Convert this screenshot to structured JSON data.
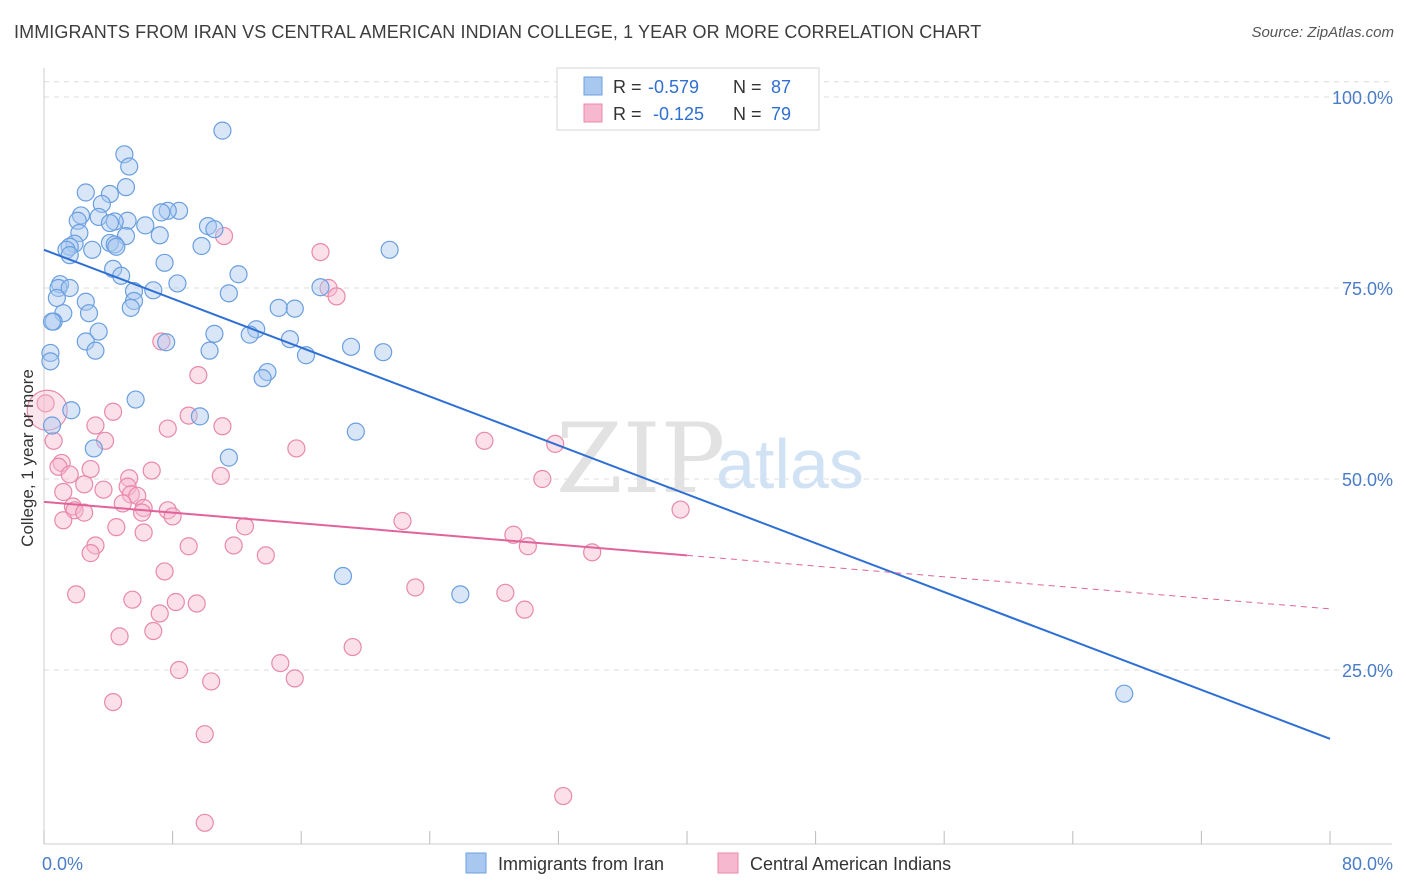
{
  "title": "IMMIGRANTS FROM IRAN VS CENTRAL AMERICAN INDIAN COLLEGE, 1 YEAR OR MORE CORRELATION CHART",
  "source": "Source: ZipAtlas.com",
  "watermark": {
    "part1": "ZIP",
    "part2": "atlas"
  },
  "colors": {
    "blue": "#2e6fd3",
    "blue_fill": "#a9c8f0",
    "pink": "#e0649a",
    "pink_fill": "#f6b8cf",
    "axis_label": "#4a7cc7",
    "grid": "#dcdcdc"
  },
  "legend": {
    "r_label": "R =",
    "n_label": "N =",
    "entries": [
      {
        "r": "-0.579",
        "n": "87"
      },
      {
        "r": "-0.125",
        "n": "79"
      }
    ]
  },
  "chart_data": {
    "type": "scatter",
    "title": "IMMIGRANTS FROM IRAN VS CENTRAL AMERICAN INDIAN COLLEGE, 1 YEAR OR MORE CORRELATION CHART",
    "xlabel": "",
    "ylabel": "College, 1 year or more",
    "xlim": [
      0,
      80
    ],
    "ylim": [
      0,
      102
    ],
    "x_tick_labels": [
      "0.0%",
      "80.0%"
    ],
    "y_ticks": [
      25,
      50,
      75,
      100
    ],
    "y_tick_labels": [
      "25.0%",
      "50.0%",
      "75.0%",
      "100.0%"
    ],
    "grid": true,
    "series": [
      {
        "name": "Immigrants from Iran",
        "r": -0.579,
        "n": 87,
        "trend": {
          "x0": 0,
          "y0": 80,
          "x1": 80,
          "y1": 16
        },
        "points": [
          [
            11.1,
            95.6
          ],
          [
            5.0,
            92.5
          ],
          [
            5.3,
            90.9
          ],
          [
            5.1,
            88.2
          ],
          [
            4.1,
            87.3
          ],
          [
            2.6,
            87.5
          ],
          [
            3.6,
            86.0
          ],
          [
            8.4,
            85.1
          ],
          [
            7.7,
            85.1
          ],
          [
            7.3,
            84.9
          ],
          [
            2.3,
            84.5
          ],
          [
            3.4,
            84.3
          ],
          [
            2.1,
            83.8
          ],
          [
            5.2,
            83.8
          ],
          [
            4.4,
            83.7
          ],
          [
            4.1,
            83.5
          ],
          [
            6.3,
            83.2
          ],
          [
            10.2,
            83.1
          ],
          [
            10.6,
            82.7
          ],
          [
            2.2,
            82.2
          ],
          [
            7.2,
            81.9
          ],
          [
            5.1,
            81.8
          ],
          [
            4.1,
            80.9
          ],
          [
            1.9,
            80.8
          ],
          [
            4.4,
            80.7
          ],
          [
            1.6,
            80.4
          ],
          [
            9.8,
            80.5
          ],
          [
            4.5,
            80.4
          ],
          [
            3.0,
            80.0
          ],
          [
            21.5,
            80.0
          ],
          [
            1.4,
            80.0
          ],
          [
            1.6,
            79.3
          ],
          [
            7.5,
            78.3
          ],
          [
            4.3,
            77.5
          ],
          [
            12.1,
            76.8
          ],
          [
            4.8,
            76.6
          ],
          [
            8.3,
            75.6
          ],
          [
            17.2,
            75.1
          ],
          [
            1.0,
            75.5
          ],
          [
            0.9,
            75.0
          ],
          [
            1.6,
            75.0
          ],
          [
            6.8,
            74.7
          ],
          [
            5.6,
            74.6
          ],
          [
            11.5,
            74.3
          ],
          [
            0.8,
            73.7
          ],
          [
            2.6,
            73.2
          ],
          [
            5.6,
            73.3
          ],
          [
            5.4,
            72.4
          ],
          [
            15.6,
            72.3
          ],
          [
            14.6,
            72.4
          ],
          [
            1.2,
            71.7
          ],
          [
            2.8,
            71.7
          ],
          [
            0.6,
            70.6
          ],
          [
            0.5,
            70.6
          ],
          [
            13.2,
            69.6
          ],
          [
            3.4,
            69.3
          ],
          [
            10.6,
            69.0
          ],
          [
            12.8,
            68.9
          ],
          [
            15.3,
            68.3
          ],
          [
            2.6,
            68.0
          ],
          [
            7.6,
            67.9
          ],
          [
            19.1,
            67.3
          ],
          [
            10.3,
            66.8
          ],
          [
            3.2,
            66.8
          ],
          [
            21.1,
            66.6
          ],
          [
            16.3,
            66.2
          ],
          [
            0.4,
            66.5
          ],
          [
            0.4,
            65.4
          ],
          [
            13.9,
            64.0
          ],
          [
            13.6,
            63.2
          ],
          [
            5.7,
            60.4
          ],
          [
            1.7,
            59.0
          ],
          [
            9.7,
            58.2
          ],
          [
            0.5,
            57.0
          ],
          [
            19.4,
            56.2
          ],
          [
            3.1,
            54.0
          ],
          [
            11.5,
            52.8
          ],
          [
            18.6,
            37.3
          ],
          [
            25.9,
            34.9
          ],
          [
            67.2,
            21.9
          ]
        ]
      },
      {
        "name": "Central American Indians",
        "r": -0.125,
        "n": 79,
        "trend": {
          "x0": 0,
          "y0": 47,
          "x1": 40,
          "y1": 40,
          "dashed_to_x": 80,
          "dashed_to_y": 33
        },
        "points": [
          [
            11.2,
            81.8
          ],
          [
            17.2,
            79.7
          ],
          [
            17.7,
            75.0
          ],
          [
            18.2,
            73.9
          ],
          [
            7.3,
            68.0
          ],
          [
            9.6,
            63.6
          ],
          [
            0.1,
            59.9
          ],
          [
            4.3,
            58.8
          ],
          [
            9.0,
            58.3
          ],
          [
            3.2,
            57.0
          ],
          [
            7.7,
            56.6
          ],
          [
            11.1,
            56.9
          ],
          [
            0.6,
            55.0
          ],
          [
            3.8,
            55.0
          ],
          [
            27.4,
            55.0
          ],
          [
            31.8,
            54.6
          ],
          [
            15.7,
            54.0
          ],
          [
            1.1,
            52.1
          ],
          [
            0.9,
            51.6
          ],
          [
            2.9,
            51.3
          ],
          [
            6.7,
            51.1
          ],
          [
            1.6,
            50.6
          ],
          [
            5.3,
            50.1
          ],
          [
            11.0,
            50.4
          ],
          [
            31.0,
            50.0
          ],
          [
            2.5,
            49.3
          ],
          [
            5.2,
            49.0
          ],
          [
            1.2,
            48.3
          ],
          [
            3.7,
            48.6
          ],
          [
            5.4,
            48.0
          ],
          [
            5.8,
            47.8
          ],
          [
            4.9,
            46.8
          ],
          [
            1.8,
            46.4
          ],
          [
            6.2,
            46.2
          ],
          [
            7.7,
            45.9
          ],
          [
            1.9,
            45.9
          ],
          [
            2.5,
            45.6
          ],
          [
            6.1,
            45.6
          ],
          [
            39.6,
            46.0
          ],
          [
            8.0,
            45.1
          ],
          [
            1.2,
            44.6
          ],
          [
            22.3,
            44.5
          ],
          [
            4.5,
            43.7
          ],
          [
            12.5,
            43.8
          ],
          [
            6.2,
            43.0
          ],
          [
            29.2,
            42.7
          ],
          [
            3.2,
            41.3
          ],
          [
            11.8,
            41.3
          ],
          [
            9.0,
            41.2
          ],
          [
            30.1,
            41.2
          ],
          [
            2.9,
            40.3
          ],
          [
            34.1,
            40.4
          ],
          [
            13.8,
            40.0
          ],
          [
            7.5,
            37.9
          ],
          [
            23.1,
            35.8
          ],
          [
            2.0,
            34.9
          ],
          [
            5.5,
            34.2
          ],
          [
            28.7,
            35.1
          ],
          [
            8.2,
            33.9
          ],
          [
            9.5,
            33.7
          ],
          [
            7.2,
            32.4
          ],
          [
            29.9,
            32.9
          ],
          [
            6.8,
            30.1
          ],
          [
            4.7,
            29.4
          ],
          [
            19.2,
            28.0
          ],
          [
            14.7,
            25.9
          ],
          [
            8.4,
            25.0
          ],
          [
            15.6,
            23.9
          ],
          [
            10.4,
            23.5
          ],
          [
            4.3,
            20.8
          ],
          [
            10.0,
            16.6
          ],
          [
            32.3,
            8.5
          ],
          [
            10.0,
            5.0
          ]
        ]
      }
    ]
  },
  "bottom_legend": [
    {
      "label": "Immigrants from Iran"
    },
    {
      "label": "Central American Indians"
    }
  ]
}
